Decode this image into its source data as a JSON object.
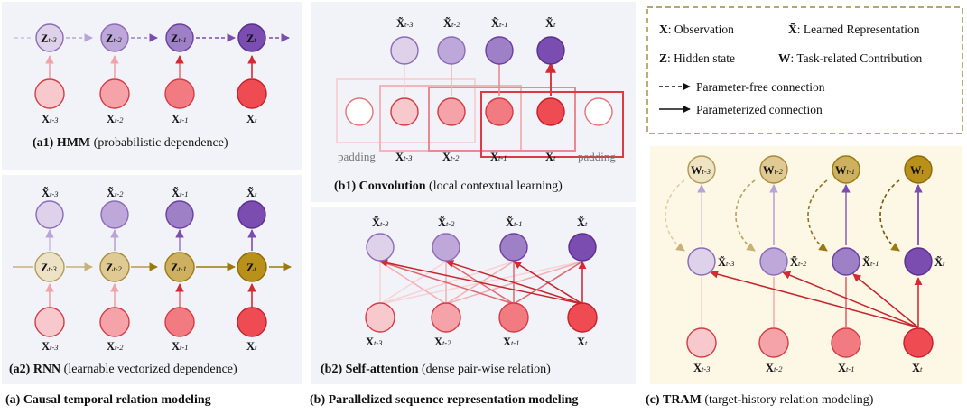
{
  "panels": {
    "a1": {
      "tag": "(a1)",
      "bold": "HMM",
      "rest": "(probabilistic dependence)"
    },
    "a2": {
      "tag": "(a2)",
      "bold": "RNN",
      "rest": "(learnable vectorized dependence)"
    },
    "b1": {
      "tag": "(b1)",
      "bold": "Convolution",
      "rest": "(local contextual learning)"
    },
    "b2": {
      "tag": "(b2)",
      "bold": "Self-attention",
      "rest": "(dense pair-wise relation)"
    },
    "padding": "padding"
  },
  "captions": {
    "a": "(a) Causal temporal relation modeling",
    "b": "(b) Parallelized sequence representation modeling",
    "c_tag": "(c)",
    "c_bold": "TRAM",
    "c_rest": "(target-history relation modeling)"
  },
  "legend": {
    "x_key": "X",
    "x_text": ": Observation",
    "xt_key": "X̃",
    "xt_text": ": Learned Representation",
    "z_key": "Z",
    "z_text": ": Hidden state",
    "w_key": "W",
    "w_text": ": Task-related Contribution",
    "dashed": "Parameter-free connection",
    "solid": "Parameterized connection"
  },
  "symbols": {
    "Z": "Z",
    "X": "X",
    "Xt": "X̃",
    "W": "W",
    "subs": [
      "t-3",
      "t-2",
      "t-1",
      "t"
    ]
  },
  "colors": {
    "x_fill": [
      "#f8c9cc",
      "#f5a3a8",
      "#f27b82",
      "#ef4b52"
    ],
    "xt_fill": [
      "#ddd2ea",
      "#bda8d9",
      "#9e80c6",
      "#7b4db0"
    ],
    "z_fill": [
      "#ede2c6",
      "#dfca94",
      "#cdb060",
      "#b8901a"
    ],
    "panel_bg": "#f2f3f8",
    "tram_bg": "#fdf7e6",
    "legend_border": "#a08a3c"
  }
}
